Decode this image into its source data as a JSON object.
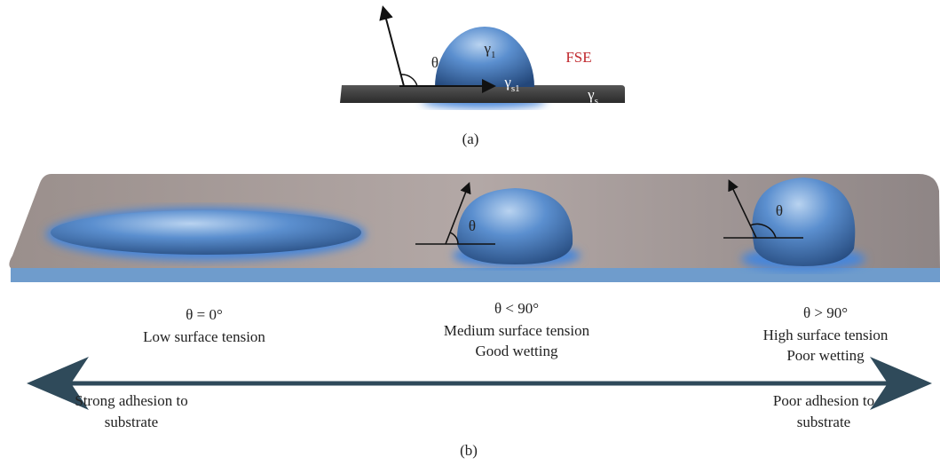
{
  "panel_a": {
    "theta": "θ",
    "gamma_liquid": {
      "symbol": "γ",
      "subscript": "1"
    },
    "label_fse": "FSE",
    "gamma_solid_liquid": {
      "symbol": "γ",
      "subscript": "s1"
    },
    "gamma_solid": {
      "symbol": "γ",
      "subscript": "s"
    },
    "caption": "(a)"
  },
  "panel_b": {
    "drops": [
      {
        "angle": "θ = 0°",
        "lines": [
          "Low surface tension"
        ]
      },
      {
        "theta": "θ",
        "angle": "θ < 90°",
        "lines": [
          "Medium surface tension",
          "Good wetting"
        ]
      },
      {
        "theta": "θ",
        "angle": "θ > 90°",
        "lines": [
          "High surface tension",
          "Poor wetting"
        ]
      }
    ],
    "arrow": {
      "left": [
        "Strong adhesion to",
        "substrate"
      ],
      "right": [
        "Poor adhesion to",
        "substrate"
      ]
    },
    "caption": "(b)"
  }
}
